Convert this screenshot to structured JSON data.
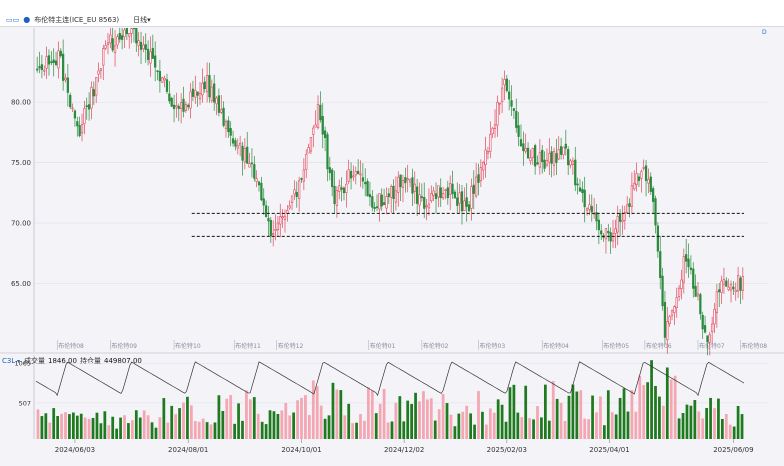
{
  "header": {
    "left_icon": "toggle-icon",
    "instrument": "布伦特主连(ICE_EU 8563)",
    "period": "日线"
  },
  "legend_volume": {
    "badge": "C3L",
    "volume_label": "成交量",
    "volume_value": "1846.00",
    "oi_label": "持仓量",
    "oi_value": "449807.00"
  },
  "corner_label": "D",
  "colors": {
    "up": "#e0455a",
    "down": "#2b8a3e",
    "vol_up": "#f4a6b2",
    "vol_down": "#1f7a1f",
    "oi_line": "#333333",
    "grid": "#dcdce6",
    "support": "#111111"
  },
  "chart_data": [
    {
      "type": "candlestick",
      "y_ticks": [
        "80.00",
        "75.00",
        "70.00",
        "65.00"
      ],
      "y_tick_values": [
        80,
        75,
        70,
        65
      ],
      "ylim": [
        59.5,
        85.8
      ],
      "contract_markers": [
        "布伦特08",
        "布伦特09",
        "布伦特10",
        "布伦特11",
        "布伦特12",
        "布伦特01",
        "布伦特02",
        "布伦特03",
        "布伦特04",
        "布伦特05",
        "布伦特06",
        "布伦特07",
        "布伦特08"
      ],
      "contract_marker_positions": [
        0.03,
        0.105,
        0.195,
        0.28,
        0.34,
        0.47,
        0.545,
        0.625,
        0.715,
        0.8,
        0.86,
        0.935,
        0.995
      ],
      "x_ticks": [
        "2024/06/03",
        "2024/08/01",
        "2024/10/01",
        "2024/12/02",
        "2025/02/03",
        "2025/04/01",
        "2025/06/09"
      ],
      "x_tick_positions": [
        0.055,
        0.215,
        0.375,
        0.52,
        0.665,
        0.81,
        0.985
      ],
      "levels": [
        70.8,
        68.9
      ],
      "level_segments": [
        [
          0.22,
          1.0
        ],
        [
          0.22,
          1.0
        ]
      ],
      "keypoints": [
        [
          0,
          82.5
        ],
        [
          0.03,
          84
        ],
        [
          0.06,
          77.5
        ],
        [
          0.1,
          84.8
        ],
        [
          0.13,
          86
        ],
        [
          0.17,
          83
        ],
        [
          0.2,
          79
        ],
        [
          0.24,
          81.5
        ],
        [
          0.27,
          78
        ],
        [
          0.3,
          75
        ],
        [
          0.33,
          69.5
        ],
        [
          0.37,
          73
        ],
        [
          0.4,
          79.5
        ],
        [
          0.42,
          71.5
        ],
        [
          0.45,
          74.5
        ],
        [
          0.48,
          71.5
        ],
        [
          0.52,
          73.5
        ],
        [
          0.55,
          71.5
        ],
        [
          0.58,
          73
        ],
        [
          0.61,
          71.3
        ],
        [
          0.64,
          76.5
        ],
        [
          0.66,
          81.5
        ],
        [
          0.69,
          76
        ],
        [
          0.72,
          75
        ],
        [
          0.75,
          76
        ],
        [
          0.78,
          71
        ],
        [
          0.81,
          69
        ],
        [
          0.84,
          72
        ],
        [
          0.86,
          75
        ],
        [
          0.875,
          70.5
        ],
        [
          0.89,
          61
        ],
        [
          0.92,
          67.5
        ],
        [
          0.95,
          60
        ],
        [
          0.97,
          65.5
        ],
        [
          1.0,
          65
        ]
      ]
    },
    {
      "type": "bar+line",
      "series": [
        "成交量",
        "持仓量"
      ],
      "y_ticks": [
        "1065",
        "507"
      ],
      "y_tick_values": [
        1065,
        507
      ],
      "ylim": [
        0,
        1180
      ],
      "volume_keypoints": [
        [
          0,
          320
        ],
        [
          0.1,
          380
        ],
        [
          0.2,
          450
        ],
        [
          0.25,
          520
        ],
        [
          0.3,
          560
        ],
        [
          0.35,
          600
        ],
        [
          0.4,
          640
        ],
        [
          0.45,
          580
        ],
        [
          0.5,
          560
        ],
        [
          0.55,
          500
        ],
        [
          0.6,
          470
        ],
        [
          0.65,
          560
        ],
        [
          0.7,
          600
        ],
        [
          0.75,
          620
        ],
        [
          0.8,
          520
        ],
        [
          0.84,
          700
        ],
        [
          0.86,
          900
        ],
        [
          0.88,
          1050
        ],
        [
          0.9,
          700
        ],
        [
          0.93,
          480
        ],
        [
          0.96,
          460
        ],
        [
          1.0,
          360
        ]
      ],
      "oi_cycle": 0.0905,
      "oi_phase": 0.03,
      "oi_low": 0.52,
      "oi_high": 0.92
    }
  ]
}
